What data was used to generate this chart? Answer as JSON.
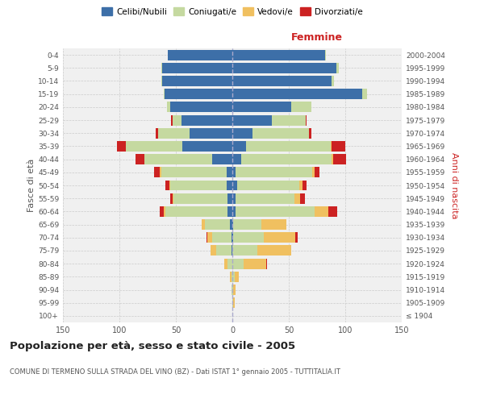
{
  "age_groups": [
    "100+",
    "95-99",
    "90-94",
    "85-89",
    "80-84",
    "75-79",
    "70-74",
    "65-69",
    "60-64",
    "55-59",
    "50-54",
    "45-49",
    "40-44",
    "35-39",
    "30-34",
    "25-29",
    "20-24",
    "15-19",
    "10-14",
    "5-9",
    "0-4"
  ],
  "birth_years": [
    "≤ 1904",
    "1905-1909",
    "1910-1914",
    "1915-1919",
    "1920-1924",
    "1925-1929",
    "1930-1934",
    "1935-1939",
    "1940-1944",
    "1945-1949",
    "1950-1954",
    "1955-1959",
    "1960-1964",
    "1965-1969",
    "1970-1974",
    "1975-1979",
    "1980-1984",
    "1985-1989",
    "1990-1994",
    "1995-1999",
    "2000-2004"
  ],
  "males": {
    "celibi": [
      0,
      0,
      0,
      0,
      0,
      1,
      1,
      2,
      4,
      4,
      5,
      5,
      18,
      44,
      38,
      45,
      55,
      60,
      62,
      62,
      57
    ],
    "coniugati": [
      0,
      0,
      1,
      1,
      4,
      13,
      17,
      22,
      55,
      48,
      50,
      58,
      60,
      50,
      28,
      8,
      3,
      1,
      1,
      1,
      0
    ],
    "vedovi": [
      0,
      0,
      0,
      1,
      3,
      5,
      4,
      3,
      2,
      1,
      1,
      1,
      0,
      0,
      0,
      0,
      0,
      0,
      0,
      0,
      0
    ],
    "divorziati": [
      0,
      0,
      0,
      0,
      0,
      0,
      1,
      0,
      3,
      2,
      3,
      5,
      8,
      8,
      2,
      1,
      0,
      0,
      0,
      0,
      0
    ]
  },
  "females": {
    "nubili": [
      0,
      0,
      0,
      0,
      0,
      0,
      1,
      1,
      3,
      3,
      4,
      3,
      8,
      12,
      18,
      35,
      52,
      115,
      88,
      92,
      82
    ],
    "coniugate": [
      0,
      1,
      1,
      2,
      10,
      22,
      27,
      25,
      70,
      52,
      55,
      68,
      80,
      75,
      50,
      30,
      18,
      4,
      2,
      2,
      1
    ],
    "vedove": [
      0,
      1,
      2,
      4,
      20,
      30,
      28,
      22,
      12,
      5,
      3,
      2,
      1,
      1,
      0,
      0,
      0,
      0,
      0,
      0,
      0
    ],
    "divorziate": [
      0,
      0,
      0,
      0,
      1,
      0,
      2,
      0,
      8,
      4,
      4,
      4,
      12,
      12,
      2,
      1,
      0,
      0,
      0,
      0,
      0
    ]
  },
  "colors": {
    "celibi": "#3d6fa8",
    "coniugati": "#c5d9a0",
    "vedovi": "#f0c060",
    "divorziati": "#cc2222"
  },
  "xlim": 150,
  "title": "Popolazione per età, sesso e stato civile - 2005",
  "subtitle": "COMUNE DI TERMENO SULLA STRADA DEL VINO (BZ) - Dati ISTAT 1° gennaio 2005 - TUTTITALIA.IT",
  "ylabel_left": "Fasce di età",
  "ylabel_right": "Anni di nascita",
  "xlabel_right": "Femmine",
  "bg_color": "#f0f0f0",
  "grid_color": "#cccccc"
}
